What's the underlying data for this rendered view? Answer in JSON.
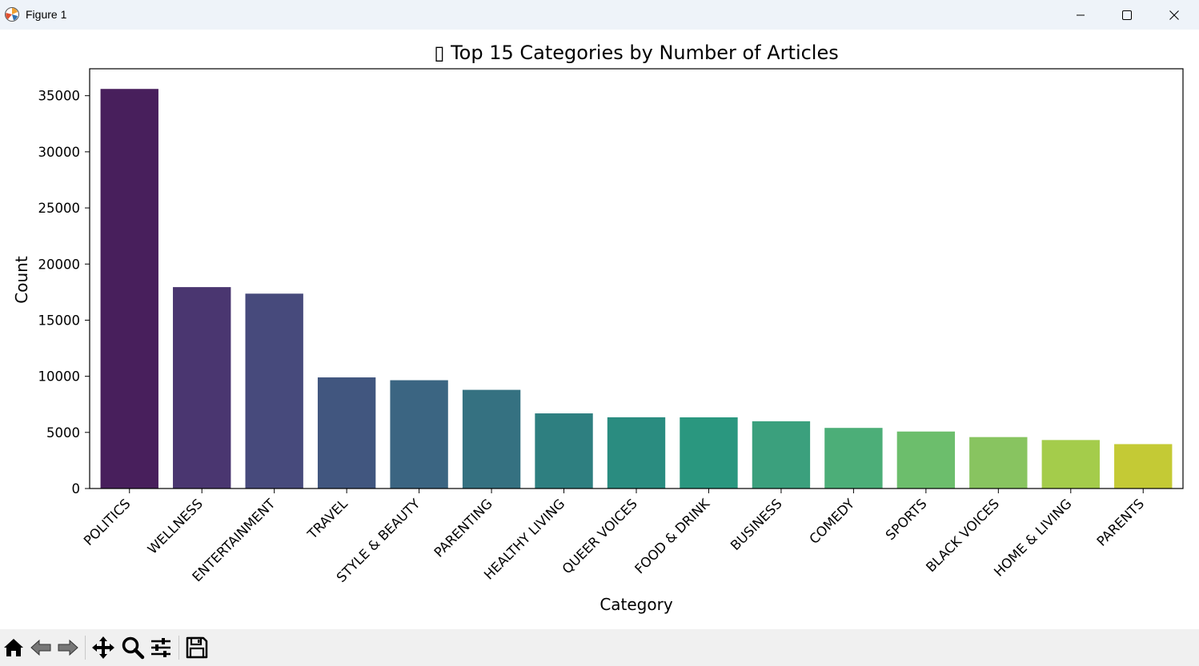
{
  "window": {
    "title": "Figure 1",
    "icons": {
      "app": "matplotlib-icon",
      "minimize": "minimize-icon",
      "maximize": "maximize-icon",
      "close": "close-icon"
    }
  },
  "toolbar": {
    "icons": [
      "home-icon",
      "back-arrow-icon",
      "forward-arrow-icon",
      "pan-icon",
      "zoom-icon",
      "configure-subplots-icon",
      "save-icon"
    ]
  },
  "chart_data": {
    "type": "bar",
    "title": "▯ Top 15 Categories by Number of Articles",
    "xlabel": "Category",
    "ylabel": "Count",
    "categories": [
      "POLITICS",
      "WELLNESS",
      "ENTERTAINMENT",
      "TRAVEL",
      "STYLE & BEAUTY",
      "PARENTING",
      "HEALTHY LIVING",
      "QUEER VOICES",
      "FOOD & DRINK",
      "BUSINESS",
      "COMEDY",
      "SPORTS",
      "BLACK VOICES",
      "HOME & LIVING",
      "PARENTS"
    ],
    "values": [
      35602,
      17945,
      17362,
      9900,
      9649,
      8791,
      6694,
      6347,
      6340,
      5992,
      5400,
      5077,
      4583,
      4320,
      3955
    ],
    "colors": [
      "#481f5c",
      "#4a3670",
      "#474a7c",
      "#41567f",
      "#3b6582",
      "#357181",
      "#2e7f80",
      "#2a8c80",
      "#2a977f",
      "#3ba07d",
      "#4cae78",
      "#6cbe6c",
      "#88c460",
      "#a4cc4b",
      "#c4ca35"
    ],
    "yticks": [
      0,
      5000,
      10000,
      15000,
      20000,
      25000,
      30000,
      35000
    ],
    "ylim": [
      0,
      37400
    ],
    "grid": false,
    "legend": false
  }
}
